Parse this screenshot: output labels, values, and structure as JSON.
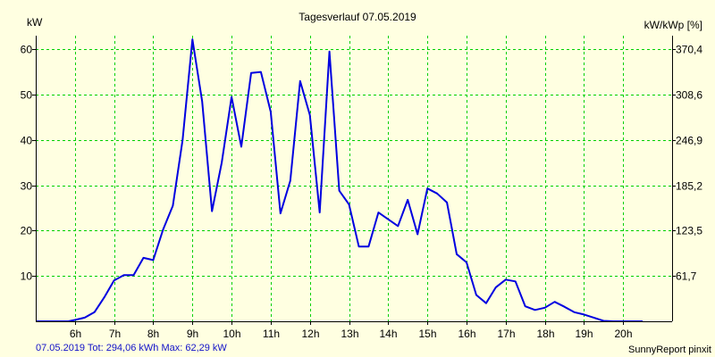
{
  "chart_data": {
    "type": "line",
    "title": "Tagesverlauf 07.05.2019",
    "ylabel": "kW",
    "ylabel_right": "kW/kWp [%]",
    "ylim": [
      0,
      63
    ],
    "xlim": [
      5.0,
      21.25
    ],
    "x_ticks": [
      6,
      7,
      8,
      9,
      10,
      11,
      12,
      13,
      14,
      15,
      16,
      17,
      18,
      19,
      20
    ],
    "x_tick_labels": [
      "6h",
      "7h",
      "8h",
      "9h",
      "10h",
      "11h",
      "12h",
      "13h",
      "14h",
      "15h",
      "16h",
      "17h",
      "18h",
      "19h",
      "20h"
    ],
    "y_ticks": [
      10,
      20,
      30,
      40,
      50,
      60
    ],
    "y_tick_labels": [
      "10",
      "20",
      "30",
      "40",
      "50",
      "60"
    ],
    "y_right_ticks": [
      10,
      20,
      30,
      40,
      50,
      60
    ],
    "y_right_tick_labels": [
      "61,7",
      "123,5",
      "185,2",
      "246,9",
      "308,6",
      "370,4"
    ],
    "grid": true,
    "line_color": "#0000e0",
    "grid_color": "#00d000",
    "background_color": "#ffffe1",
    "series": [
      {
        "values": [
          [
            5.0,
            0
          ],
          [
            5.83,
            0
          ],
          [
            6.0,
            0.3
          ],
          [
            6.25,
            0.8
          ],
          [
            6.5,
            2
          ],
          [
            6.75,
            5.3
          ],
          [
            7.0,
            9
          ],
          [
            7.25,
            10.2
          ],
          [
            7.5,
            10.2
          ],
          [
            7.75,
            14
          ],
          [
            8.0,
            13.5
          ],
          [
            8.25,
            20.2
          ],
          [
            8.5,
            25.5
          ],
          [
            8.75,
            40
          ],
          [
            9.0,
            62.2
          ],
          [
            9.25,
            48.5
          ],
          [
            9.5,
            24.3
          ],
          [
            9.75,
            35
          ],
          [
            10.0,
            49.5
          ],
          [
            10.25,
            38.5
          ],
          [
            10.5,
            54.8
          ],
          [
            10.75,
            55
          ],
          [
            11.0,
            46.2
          ],
          [
            11.25,
            23.8
          ],
          [
            11.5,
            31
          ],
          [
            11.75,
            53
          ],
          [
            12.0,
            45.5
          ],
          [
            12.25,
            24
          ],
          [
            12.5,
            59.5
          ],
          [
            12.75,
            28.8
          ],
          [
            13.0,
            25.8
          ],
          [
            13.25,
            16.5
          ],
          [
            13.5,
            16.5
          ],
          [
            13.75,
            24
          ],
          [
            14.0,
            22.5
          ],
          [
            14.25,
            21
          ],
          [
            14.5,
            26.8
          ],
          [
            14.75,
            19.2
          ],
          [
            15.0,
            29.3
          ],
          [
            15.25,
            28.2
          ],
          [
            15.5,
            26.2
          ],
          [
            15.75,
            14.8
          ],
          [
            16.0,
            13
          ],
          [
            16.25,
            5.8
          ],
          [
            16.5,
            4
          ],
          [
            16.75,
            7.5
          ],
          [
            17.0,
            9.2
          ],
          [
            17.25,
            8.8
          ],
          [
            17.5,
            3.3
          ],
          [
            17.75,
            2.5
          ],
          [
            18.0,
            3
          ],
          [
            18.25,
            4.3
          ],
          [
            18.5,
            3.2
          ],
          [
            18.75,
            2
          ],
          [
            19.0,
            1.5
          ],
          [
            19.25,
            0.8
          ],
          [
            19.5,
            0.1
          ],
          [
            19.75,
            0
          ],
          [
            20.0,
            0
          ],
          [
            20.5,
            0
          ]
        ]
      }
    ]
  },
  "footer": {
    "summary": "07.05.2019 Tot: 294,06 kWh Max: 62,29 kW",
    "branding": "SunnyReport pinxit"
  }
}
